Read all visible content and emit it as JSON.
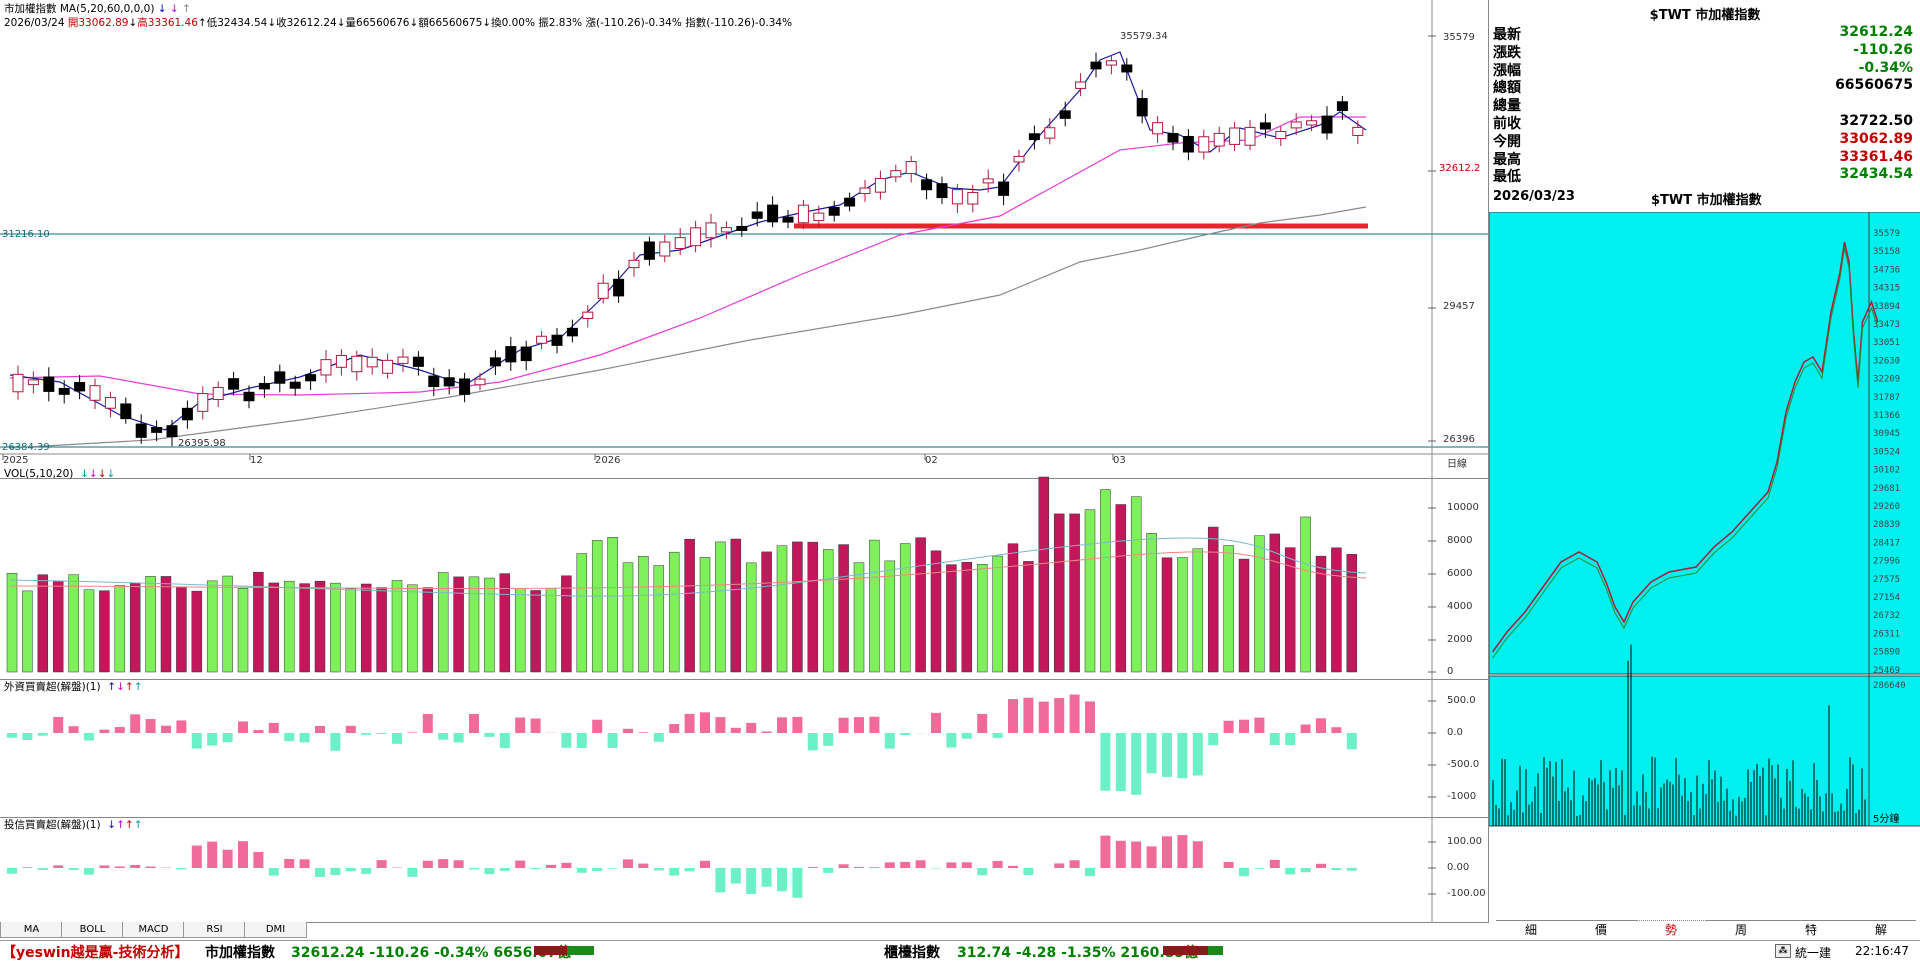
{
  "main_chart": {
    "header_line1": {
      "title": "市加權指數",
      "indicator": "MA(5,20,60,0,0,0)",
      "arrows": [
        {
          "glyph": "↓",
          "color": "#0000cc"
        },
        {
          "glyph": "↓",
          "color": "#cc00cc"
        },
        {
          "glyph": "↑",
          "color": "#808080"
        }
      ]
    },
    "header_line2": [
      {
        "text": "2026/03/24 ",
        "color": "#000000"
      },
      {
        "text": "開33062.89",
        "color": "#c00000"
      },
      {
        "text": "↓",
        "color": "#000000"
      },
      {
        "text": "高33361.46",
        "color": "#c00000"
      },
      {
        "text": "↑",
        "color": "#000000"
      },
      {
        "text": "低32434.54",
        "color": "#000000"
      },
      {
        "text": "↓",
        "color": "#000000"
      },
      {
        "text": "收32612.24",
        "color": "#000000"
      },
      {
        "text": "↓",
        "color": "#000000"
      },
      {
        "text": "量66560676",
        "color": "#000000"
      },
      {
        "text": "↓",
        "color": "#000000"
      },
      {
        "text": "額66560675",
        "color": "#000000"
      },
      {
        "text": "↓",
        "color": "#000000"
      },
      {
        "text": "換0.00%",
        "color": "#000000"
      },
      {
        "text": " 振2.83%",
        "color": "#000000"
      },
      {
        "text": " 漲(-110.26)-0.34%",
        "color": "#000000"
      },
      {
        "text": " 指數(-110.26)-0.34%",
        "color": "#000000"
      }
    ],
    "y_axis_labels": [
      "35579",
      "32612.2",
      "29457",
      "26396"
    ],
    "left_levels": [
      "31216.10",
      "26384.39"
    ],
    "high_annotation": "35579.34",
    "low_annotation": "26395.98",
    "x_axis_labels": [
      "2025",
      "12",
      "2026",
      "02",
      "03"
    ],
    "x_axis_unit": "日線"
  },
  "volume_panel": {
    "title": "VOL(5,10,20)",
    "arrows": [
      "↓",
      "↓",
      "↓",
      "↓"
    ],
    "y_labels": [
      "10000",
      "8000",
      "6000",
      "4000",
      "2000",
      "0"
    ]
  },
  "foreign_panel": {
    "title": "外資買賣超(解盤)(1)",
    "arrows": [
      "↑",
      "↓",
      "↑",
      "↑"
    ],
    "y_labels": [
      "500.0",
      "0.0",
      "-500.0",
      "-1000"
    ]
  },
  "trust_panel": {
    "title": "投信買賣超(解盤)(1)",
    "arrows": [
      "↓",
      "↑",
      "↑",
      "↑"
    ],
    "y_labels": [
      "100.00",
      "0.00",
      "-100.00"
    ]
  },
  "bottom_tabs": [
    "MA",
    "BOLL",
    "MACD",
    "RSI",
    "DMI"
  ],
  "quote": {
    "title": "$TWT 市加權指數",
    "rows": [
      {
        "label": "最新",
        "value": "32612.24",
        "color": "#008000"
      },
      {
        "label": "漲跌",
        "value": "-110.26",
        "color": "#008000"
      },
      {
        "label": "漲幅",
        "value": "-0.34%",
        "color": "#008000"
      },
      {
        "label": "總額",
        "value": "66560675",
        "color": "#000000"
      },
      {
        "label": "總量",
        "value": "",
        "color": "#000000"
      },
      {
        "label": "前收",
        "value": "32722.50",
        "color": "#000000"
      },
      {
        "label": "今開",
        "value": "33062.89",
        "color": "#c00000"
      },
      {
        "label": "最高",
        "value": "33361.46",
        "color": "#c00000"
      },
      {
        "label": "最低",
        "value": "32434.54",
        "color": "#008000"
      }
    ]
  },
  "mini_chart": {
    "date": "2026/03/23",
    "title": "$TWT 市加權指數",
    "price_labels": [
      "35579",
      "35158",
      "34736",
      "34315",
      "33894",
      "33473",
      "33051",
      "32630",
      "32209",
      "31787",
      "31366",
      "30945",
      "30524",
      "30102",
      "29681",
      "29260",
      "28839",
      "28417",
      "27996",
      "27575",
      "27154",
      "26732",
      "26311",
      "25890",
      "25469"
    ],
    "vol_label": "286640",
    "interval_label": "5分鐘"
  },
  "right_tabs": [
    "細",
    "價",
    "勢",
    "周",
    "特",
    "解"
  ],
  "status": {
    "promo": "【yeswin越是贏-技術分析】",
    "index1_name": "市加權指數",
    "index1_values": "32612.24 -110.26 -0.34% 6656.07億",
    "index2_name": "櫃檯指數",
    "index2_values": "312.74 -4.28 -1.35% 2160.85億",
    "tool_label": "統一建",
    "time": "22:16:47"
  },
  "colors": {
    "up": "#b0173e",
    "down": "#000000",
    "vol_up": "#c2185b",
    "vol_down": "#7ef05a",
    "ma5": "#1a1a9e",
    "ma20": "#e83bd6",
    "ma60": "#8a8a8a",
    "support": "#e6242b",
    "mini_bg": "#00f0f0",
    "foreign_pos": "#f06b9a",
    "foreign_neg": "#6bf0c8"
  }
}
